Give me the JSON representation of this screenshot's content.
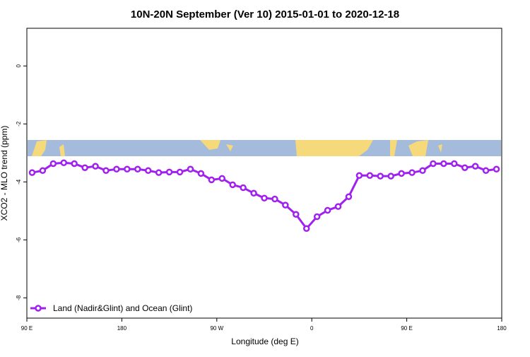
{
  "chart_data": {
    "type": "line",
    "title": "10N-20N September (Ver 10)   2015-01-01 to 2020-12-18",
    "x_label": "Longitude (deg E)",
    "y_label": "XCO2 - MLO trend (ppm)",
    "x": [
      95,
      105,
      115,
      125,
      135,
      145,
      155,
      165,
      175,
      185,
      195,
      205,
      215,
      225,
      235,
      245,
      255,
      265,
      275,
      285,
      295,
      305,
      315,
      325,
      335,
      345,
      355,
      365,
      375,
      385,
      395,
      405,
      415,
      425,
      435,
      445,
      455,
      465,
      475,
      485,
      495,
      505,
      515,
      525,
      535
    ],
    "series": [
      {
        "name": "Land (Nadir&Glint) and Ocean (Glint)",
        "color": "#a020f0",
        "values": [
          -3.68,
          -3.61,
          -3.37,
          -3.34,
          -3.37,
          -3.51,
          -3.46,
          -3.61,
          -3.56,
          -3.56,
          -3.56,
          -3.61,
          -3.68,
          -3.66,
          -3.66,
          -3.56,
          -3.71,
          -3.93,
          -3.88,
          -4.1,
          -4.2,
          -4.39,
          -4.56,
          -4.59,
          -4.8,
          -5.12,
          -5.61,
          -5.2,
          -4.98,
          -4.85,
          -4.51,
          -3.78,
          -3.78,
          -3.8,
          -3.8,
          -3.71,
          -3.68,
          -3.61,
          -3.37,
          -3.37,
          -3.37,
          -3.51,
          -3.46,
          -3.61,
          -3.56
        ]
      }
    ],
    "xlim": [
      90,
      540
    ],
    "xticks": [
      {
        "value": 90,
        "label": "90 E"
      },
      180,
      {
        "value": 270,
        "label": "90 W"
      },
      {
        "value": 360,
        "label": "0"
      },
      {
        "value": 450,
        "label": "90 E"
      },
      {
        "value": 540,
        "label": "180"
      }
    ],
    "ylim": [
      -8.7,
      1.3
    ],
    "yticks": [
      0,
      -2,
      -4,
      -6,
      -8
    ],
    "legend": "bottom-left"
  }
}
